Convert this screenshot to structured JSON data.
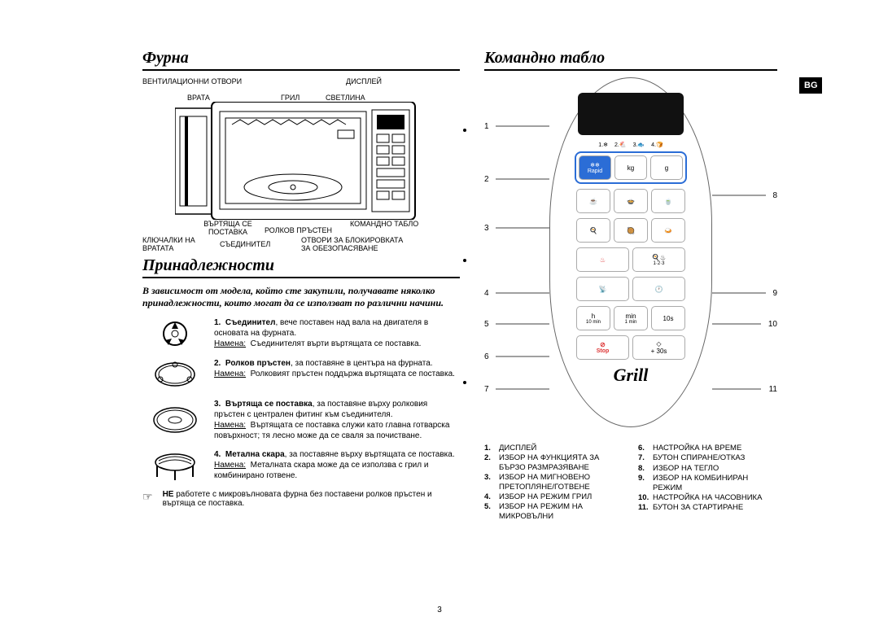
{
  "lang_badge": "BG",
  "page_number": "3",
  "oven": {
    "title": "Фурна",
    "labels": {
      "vent": "ВЕНТИЛАЦИОННИ ОТВОРИ",
      "door": "ВРАТА",
      "grill": "ГРИЛ",
      "display": "ДИСПЛЕЙ",
      "light": "СВЕТЛИНА",
      "control_panel": "КОМАНДНО ТАБЛО",
      "turntable": "ВЪРТЯЩА СЕ ПОСТАВКА",
      "roller_ring": "РОЛКОВ ПРЪСТЕН",
      "door_latches": "КЛЮЧАЛКИ НА ВРАТАТА",
      "coupler": "СЪЕДИНИТЕЛ",
      "safety_holes": "ОТВОРИ ЗА БЛОКИРОВКАТА ЗА ОБЕЗОПАСЯВАНЕ"
    }
  },
  "accessories": {
    "title": "Принадлежности",
    "intro": "В зависимост от модела, който сте закупили, получавате няколко принадлежности, които могат да се използват по различни начини.",
    "note_label": "Намена:",
    "items": [
      {
        "num": "1.",
        "name": "Съединител",
        "desc": ", вече поставен над вала на двигателя в основата на фурната.",
        "note": "Съединителят върти въртящата се поставка."
      },
      {
        "num": "2.",
        "name": "Ролков пръстен",
        "desc": ", за поставяне в центъра на фурната.",
        "note": "Ролковият пръстен поддържа въртящата се поставка."
      },
      {
        "num": "3.",
        "name": "Въртяща се поставка",
        "desc": ", за поставяне върху ролковия пръстен с централен фитинг към съединителя.",
        "note": "Въртящата се поставка служи като главна готварска повърхност; тя лесно може да се сваля за почистване."
      },
      {
        "num": "4.",
        "name": "Метална скара",
        "desc": ", за поставяне върху въртящата се поставка.",
        "note": "Металната скара може да се използва с грил и комбинирано готвене."
      }
    ],
    "warning": {
      "strong": "НЕ",
      "text": " работете с микровълновата фурна без поставени ролков пръстен и въртяща се поставка."
    }
  },
  "control_panel": {
    "title": "Командно табло",
    "brand": "Grill",
    "callouts": [
      "1",
      "2",
      "3",
      "4",
      "5",
      "6",
      "7",
      "8",
      "9",
      "10",
      "11"
    ],
    "buttons": {
      "rapid": "Rapid",
      "kg": "kg",
      "g": "g",
      "h": "h",
      "h2": "10 min",
      "min": "min",
      "min2": "1 min",
      "s": "10s",
      "stop": "Stop",
      "plus30": "+ 30s",
      "combi": "1·2·3"
    },
    "legend_left": [
      {
        "n": "1.",
        "t": "ДИСПЛЕЙ"
      },
      {
        "n": "2.",
        "t": "ИЗБОР НА ФУНКЦИЯТА ЗА БЪРЗО РАЗМРАЗЯВАНЕ"
      },
      {
        "n": "3.",
        "t": "ИЗБОР НА МИГНОВЕНО ПРЕТОПЛЯНЕ/ГОТВЕНЕ"
      },
      {
        "n": "4.",
        "t": "ИЗБОР НА РЕЖИМ ГРИЛ"
      },
      {
        "n": "5.",
        "t": "ИЗБОР НА РЕЖИМ НА МИКРОВЪЛНИ"
      }
    ],
    "legend_right": [
      {
        "n": "6.",
        "t": "НАСТРОЙКА НА ВРЕМЕ"
      },
      {
        "n": "7.",
        "t": "БУТОН СПИРАНЕ/ОТКАЗ"
      },
      {
        "n": "8.",
        "t": "ИЗБОР НА ТЕГЛО"
      },
      {
        "n": "9.",
        "t": "ИЗБОР НА КОМБИНИРАН РЕЖИМ"
      },
      {
        "n": "10.",
        "t": "НАСТРОЙКА НА ЧАСОВНИКА"
      },
      {
        "n": "11.",
        "t": "БУТОН ЗА СТАРТИРАНЕ"
      }
    ]
  }
}
